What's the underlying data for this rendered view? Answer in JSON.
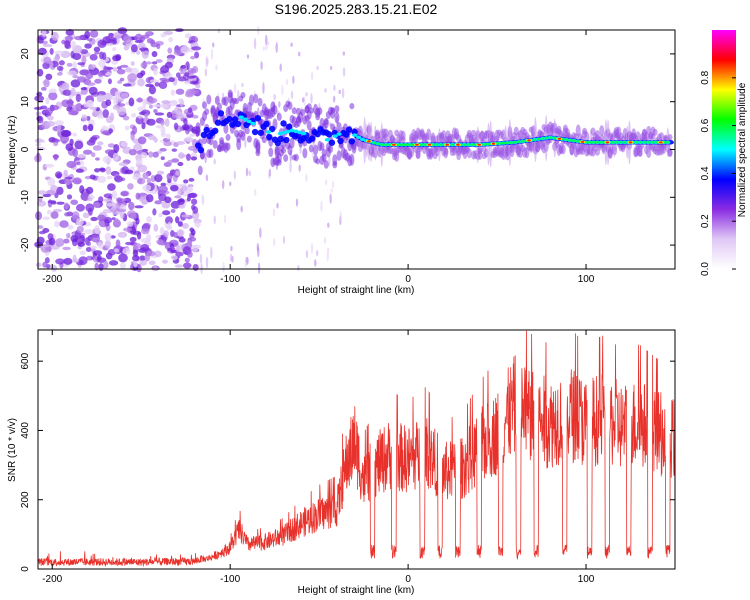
{
  "title": "S196.2025.283.15.21.E02",
  "chart_data": [
    {
      "type": "heatmap",
      "xlabel": "Height of straight line (km)",
      "ylabel": "Frequency (Hz)",
      "xlim": [
        -208,
        150
      ],
      "ylim": [
        -25,
        25
      ],
      "xticks": [
        -200,
        -100,
        0,
        100
      ],
      "yticks": [
        -20,
        -10,
        0,
        10,
        20
      ],
      "ridge": [
        {
          "x": -115,
          "f": 4
        },
        {
          "x": -105,
          "f": 6
        },
        {
          "x": -95,
          "f": 7
        },
        {
          "x": -85,
          "f": 5
        },
        {
          "x": -75,
          "f": 3
        },
        {
          "x": -65,
          "f": 4
        },
        {
          "x": -55,
          "f": 3
        },
        {
          "x": -45,
          "f": 2
        },
        {
          "x": -35,
          "f": 4
        },
        {
          "x": -25,
          "f": 2
        },
        {
          "x": -15,
          "f": 1
        },
        {
          "x": 0,
          "f": 1
        },
        {
          "x": 20,
          "f": 1
        },
        {
          "x": 40,
          "f": 1
        },
        {
          "x": 60,
          "f": 1.5
        },
        {
          "x": 80,
          "f": 2.5
        },
        {
          "x": 100,
          "f": 1.5
        },
        {
          "x": 120,
          "f": 1.5
        },
        {
          "x": 148,
          "f": 1.5
        }
      ],
      "colorbar": {
        "label": "Normalized spectral amplitude",
        "range": [
          0,
          1
        ],
        "ticks": [
          "0.0",
          "0.2",
          "0.4",
          "0.6",
          "0.8"
        ],
        "colors": [
          "#ffffff",
          "#e0c8f5",
          "#8a2be2",
          "#0000ff",
          "#00ffff",
          "#00ff00",
          "#ffff00",
          "#ff0000",
          "#ff00ff"
        ]
      }
    },
    {
      "type": "line",
      "xlabel": "Height of straight line (km)",
      "ylabel": "SNR (10 * v/v)",
      "xlim": [
        -208,
        150
      ],
      "ylim": [
        0,
        690
      ],
      "xticks": [
        -200,
        -100,
        0,
        100
      ],
      "yticks": [
        0,
        200,
        400,
        600
      ],
      "color": "#e8312a",
      "series": [
        {
          "name": "SNR",
          "x": [
            -208,
            -180,
            -150,
            -120,
            -110,
            -100,
            -95,
            -90,
            -80,
            -70,
            -60,
            -50,
            -40,
            -35,
            -30,
            -25,
            -20,
            -10,
            0,
            10,
            20,
            30,
            40,
            50,
            60,
            70,
            80,
            90,
            100,
            110,
            120,
            130,
            140,
            150
          ],
          "y": [
            20,
            20,
            20,
            22,
            40,
            70,
            130,
            80,
            90,
            110,
            150,
            180,
            200,
            340,
            420,
            290,
            330,
            380,
            360,
            390,
            320,
            330,
            400,
            450,
            540,
            500,
            480,
            520,
            480,
            500,
            470,
            480,
            450,
            430
          ]
        }
      ]
    }
  ]
}
